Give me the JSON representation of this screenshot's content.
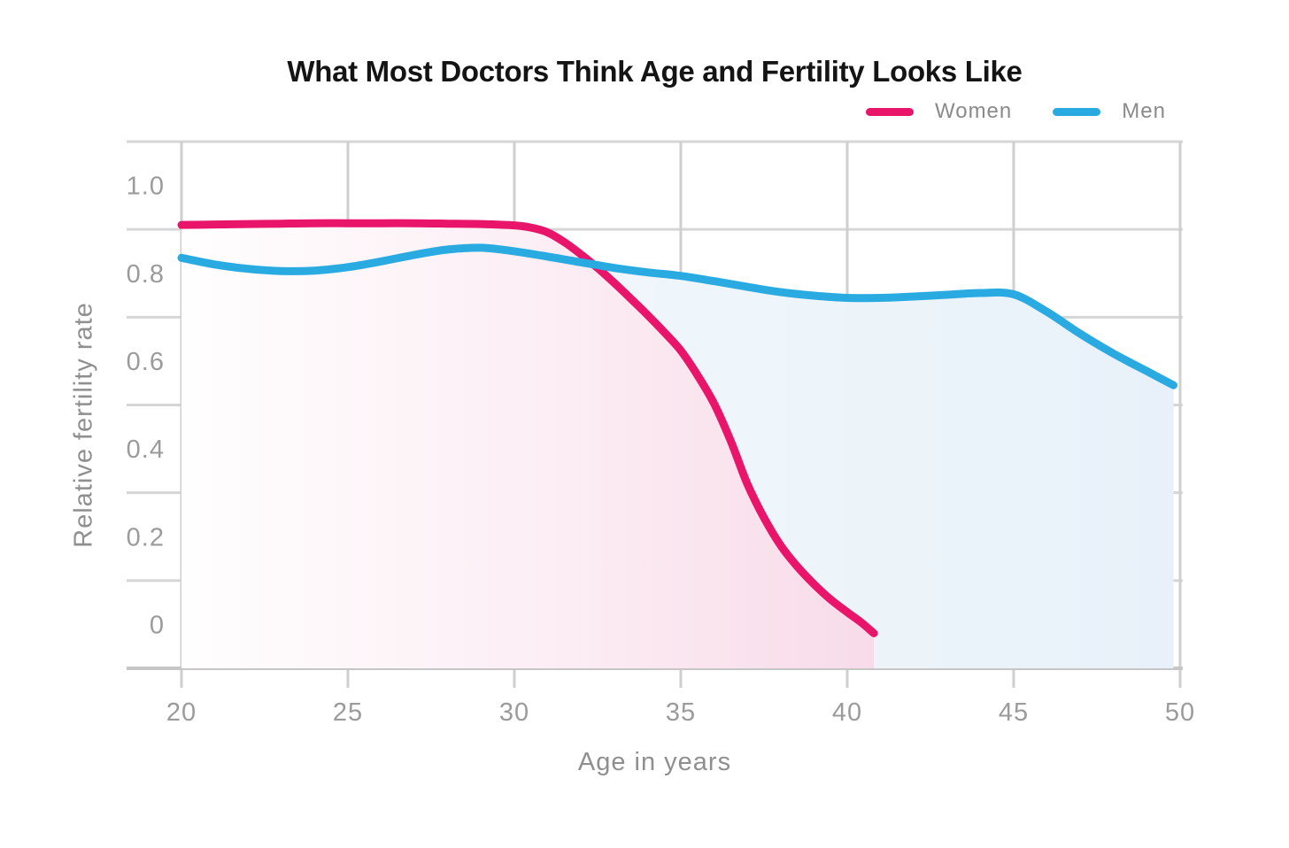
{
  "title": "What Most Doctors Think Age and Fertility Looks Like",
  "legend": [
    {
      "label": "Women",
      "color": "#E8156B"
    },
    {
      "label": "Men",
      "color": "#29ABE2"
    }
  ],
  "chart_data": {
    "type": "line",
    "title": "What Most Doctors Think Age and Fertility Looks Like",
    "xlabel": "Age in years",
    "ylabel": "Relative fertility rate",
    "x_ticks": [
      20,
      25,
      30,
      35,
      40,
      45,
      50
    ],
    "y_tick_labels": [
      "1.0",
      "0.8",
      "0.6",
      "0.4",
      "0.2",
      "0"
    ],
    "xlim": [
      18.4,
      50
    ],
    "ylim": [
      -0.1,
      1.1
    ],
    "grid": true,
    "legend_position": "top-right",
    "series": [
      {
        "name": "Women",
        "color": "#E8156B",
        "fill_gradient": [
          "#FFFEFE",
          "#FCEFF5",
          "#F8DBE9"
        ],
        "points": [
          [
            20,
            0.91
          ],
          [
            21,
            0.911
          ],
          [
            22,
            0.912
          ],
          [
            23,
            0.913
          ],
          [
            24,
            0.914
          ],
          [
            25,
            0.914
          ],
          [
            26,
            0.914
          ],
          [
            27,
            0.914
          ],
          [
            28,
            0.913
          ],
          [
            29,
            0.912
          ],
          [
            30,
            0.909
          ],
          [
            30.5,
            0.904
          ],
          [
            31,
            0.893
          ],
          [
            31.5,
            0.871
          ],
          [
            32,
            0.843
          ],
          [
            32.5,
            0.812
          ],
          [
            33,
            0.778
          ],
          [
            33.5,
            0.742
          ],
          [
            34,
            0.705
          ],
          [
            34.5,
            0.666
          ],
          [
            35,
            0.624
          ],
          [
            35.5,
            0.568
          ],
          [
            36,
            0.503
          ],
          [
            36.5,
            0.418
          ],
          [
            37,
            0.32
          ],
          [
            37.5,
            0.243
          ],
          [
            38,
            0.18
          ],
          [
            38.5,
            0.132
          ],
          [
            39,
            0.092
          ],
          [
            39.5,
            0.057
          ],
          [
            40,
            0.028
          ],
          [
            40.4,
            0.006
          ],
          [
            40.8,
            -0.02
          ]
        ]
      },
      {
        "name": "Men",
        "color": "#29ABE2",
        "fill_gradient": [
          "#F8FBFD",
          "#EFF6FB",
          "#E8F1F9"
        ],
        "points": [
          [
            20,
            0.835
          ],
          [
            21,
            0.82
          ],
          [
            22,
            0.81
          ],
          [
            23,
            0.805
          ],
          [
            24,
            0.806
          ],
          [
            25,
            0.814
          ],
          [
            26,
            0.827
          ],
          [
            27,
            0.842
          ],
          [
            28,
            0.854
          ],
          [
            29,
            0.858
          ],
          [
            30,
            0.85
          ],
          [
            31,
            0.838
          ],
          [
            32,
            0.825
          ],
          [
            33,
            0.812
          ],
          [
            34,
            0.802
          ],
          [
            35,
            0.794
          ],
          [
            36,
            0.782
          ],
          [
            37,
            0.769
          ],
          [
            38,
            0.757
          ],
          [
            39,
            0.749
          ],
          [
            40,
            0.744
          ],
          [
            41,
            0.744
          ],
          [
            42,
            0.747
          ],
          [
            43,
            0.751
          ],
          [
            44,
            0.755
          ],
          [
            45,
            0.752
          ],
          [
            46,
            0.712
          ],
          [
            47,
            0.662
          ],
          [
            48,
            0.617
          ],
          [
            49,
            0.577
          ],
          [
            49.8,
            0.545
          ]
        ]
      }
    ]
  }
}
